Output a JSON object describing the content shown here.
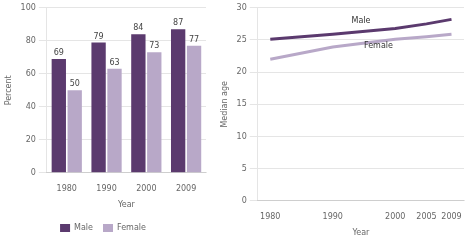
{
  "chart_data": [
    {
      "type": "bar",
      "categories": [
        "1980",
        "1990",
        "2000",
        "2009"
      ],
      "series": [
        {
          "name": "Male",
          "color": "#5b3a6e",
          "values": [
            69,
            79,
            84,
            87
          ]
        },
        {
          "name": "Female",
          "color": "#b8a8c8",
          "values": [
            50,
            63,
            73,
            77
          ]
        }
      ],
      "x_label": "Year",
      "y_label": "Percent",
      "ylim": [
        0,
        100
      ],
      "yticks": [
        0,
        20,
        40,
        60,
        80,
        100
      ],
      "grid": true,
      "data_labels": true,
      "legend": "bottom"
    },
    {
      "type": "line",
      "x": [
        1980,
        1990,
        2000,
        2005,
        2009
      ],
      "series": [
        {
          "name": "Male",
          "color": "#5b3a6e",
          "values": [
            25.1,
            25.9,
            26.8,
            27.5,
            28.2
          ]
        },
        {
          "name": "Female",
          "color": "#b8a8c8",
          "values": [
            22.0,
            23.9,
            25.1,
            25.5,
            25.9
          ]
        }
      ],
      "x_label": "Year",
      "y_label": "Median age",
      "xlim": [
        1978,
        2011
      ],
      "xticks": [
        1980,
        1990,
        2000,
        2005,
        2009
      ],
      "ylim": [
        0,
        30
      ],
      "yticks": [
        0,
        5,
        10,
        15,
        20,
        25,
        30
      ],
      "grid": true,
      "annotations": [
        {
          "text": "Male",
          "x": 1993,
          "y": 27.3
        },
        {
          "text": "Female",
          "x": 1995,
          "y": 23.5
        }
      ]
    }
  ]
}
